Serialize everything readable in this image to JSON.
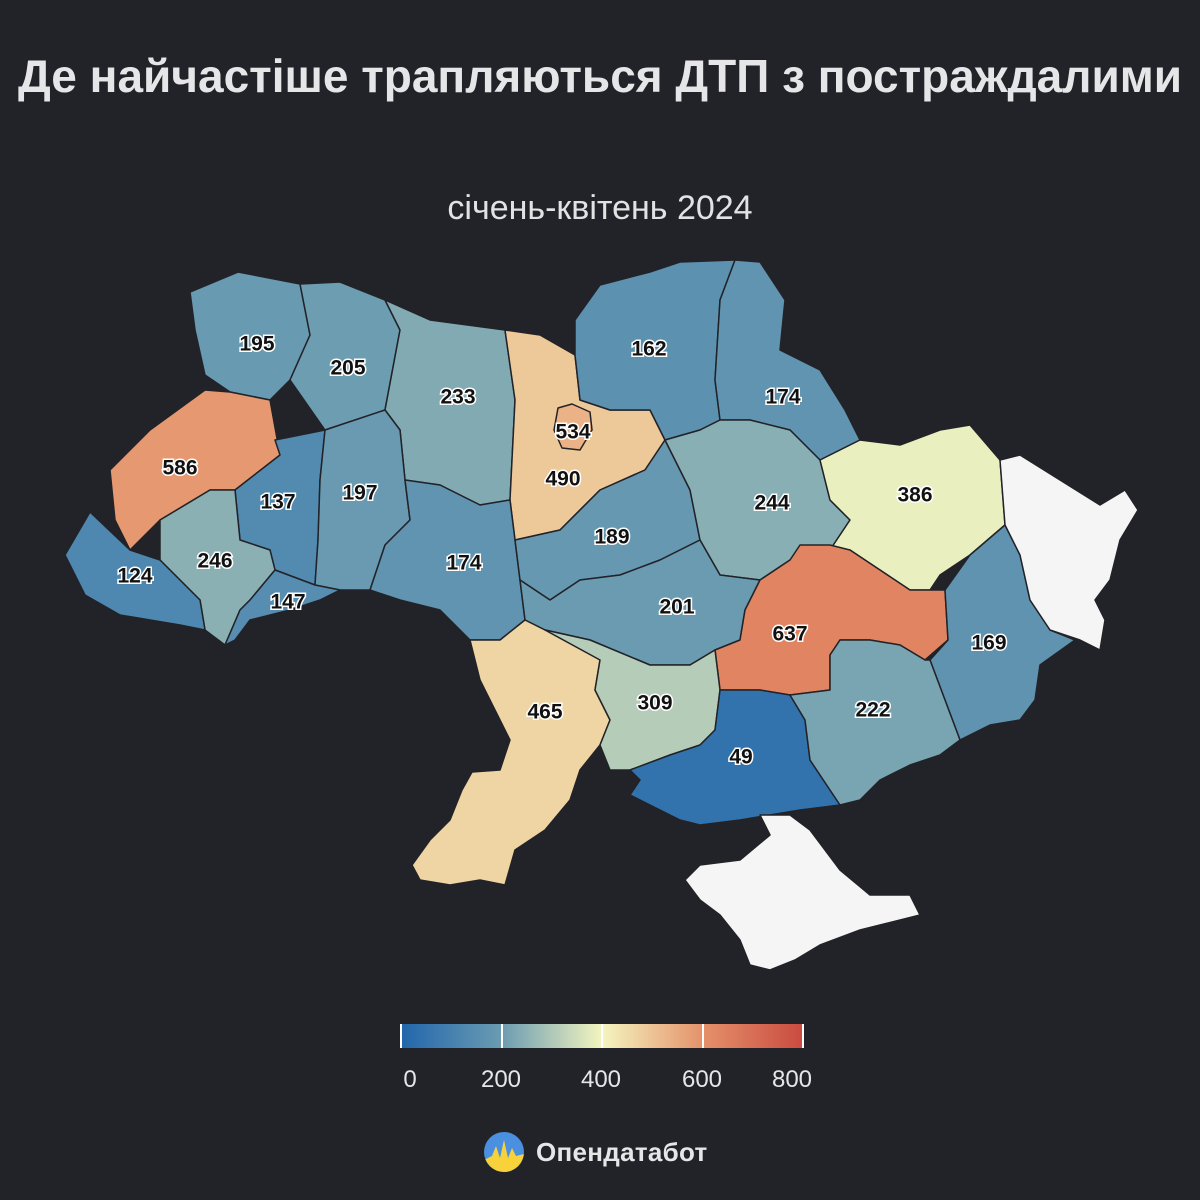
{
  "title": "Де найчастіше трапляються ДТП з постраждалими",
  "subtitle": "січень-квітень 2024",
  "brand": {
    "name": "Опендатабот",
    "logo_icon": "opendatabot-logo-icon"
  },
  "legend": {
    "ticks": [
      {
        "value": 0,
        "label": "0"
      },
      {
        "value": 200,
        "label": "200"
      },
      {
        "value": 400,
        "label": "400"
      },
      {
        "value": 600,
        "label": "600"
      },
      {
        "value": 800,
        "label": "800"
      }
    ],
    "colors": [
      "#2166ac",
      "#6a9bb1",
      "#f4f5c0",
      "#e5916a",
      "#c94a40"
    ],
    "no_data_color": "#f5f5f5"
  },
  "regions": [
    {
      "key": "volyn",
      "value": 195,
      "label": "195"
    },
    {
      "key": "rivne",
      "value": 205,
      "label": "205"
    },
    {
      "key": "zhytomyr",
      "value": 233,
      "label": "233"
    },
    {
      "key": "kyiv-city",
      "value": 534,
      "label": "534"
    },
    {
      "key": "kyiv-oblast",
      "value": 490,
      "label": "490"
    },
    {
      "key": "chernihiv",
      "value": 162,
      "label": "162"
    },
    {
      "key": "sumy",
      "value": 174,
      "label": "174"
    },
    {
      "key": "lviv",
      "value": 586,
      "label": "586"
    },
    {
      "key": "ternopil",
      "value": 137,
      "label": "137"
    },
    {
      "key": "khmelnytskyi",
      "value": 197,
      "label": "197"
    },
    {
      "key": "ivano-frankivsk",
      "value": 246,
      "label": "246"
    },
    {
      "key": "zakarpattia",
      "value": 124,
      "label": "124"
    },
    {
      "key": "chernivtsi",
      "value": 147,
      "label": "147"
    },
    {
      "key": "vinnytsia",
      "value": 174,
      "label": "174"
    },
    {
      "key": "cherkasy",
      "value": 189,
      "label": "189"
    },
    {
      "key": "poltava",
      "value": 244,
      "label": "244"
    },
    {
      "key": "kharkiv",
      "value": 386,
      "label": "386"
    },
    {
      "key": "kirovohrad",
      "value": 201,
      "label": "201"
    },
    {
      "key": "dnipropetrovsk",
      "value": 637,
      "label": "637"
    },
    {
      "key": "donetsk",
      "value": 169,
      "label": "169"
    },
    {
      "key": "odesa",
      "value": 465,
      "label": "465"
    },
    {
      "key": "mykolaiv",
      "value": 309,
      "label": "309"
    },
    {
      "key": "kherson",
      "value": 49,
      "label": "49"
    },
    {
      "key": "zaporizhzhia",
      "value": 222,
      "label": "222"
    },
    {
      "key": "luhansk",
      "value": null,
      "label": ""
    },
    {
      "key": "crimea",
      "value": null,
      "label": ""
    }
  ]
}
